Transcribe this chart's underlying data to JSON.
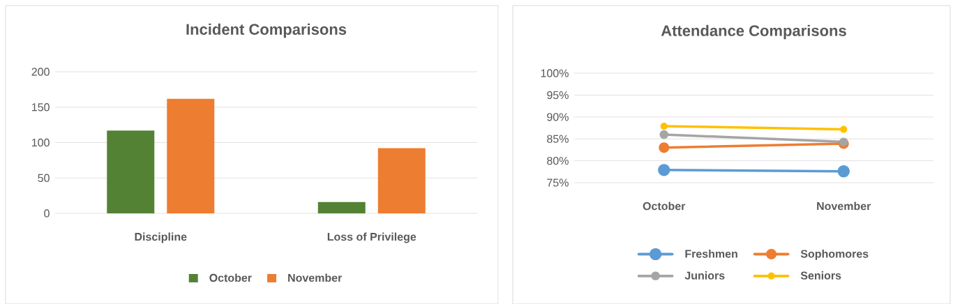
{
  "chart_data": [
    {
      "type": "bar",
      "title": "Incident Comparisons",
      "categories": [
        "Discipline",
        "Loss of Privilege"
      ],
      "series": [
        {
          "name": "October",
          "color": "#548235",
          "values": [
            117,
            16
          ]
        },
        {
          "name": "November",
          "color": "#ED7D31",
          "values": [
            162,
            92
          ]
        }
      ],
      "ylim": [
        0,
        200
      ],
      "yticks": [
        0,
        50,
        100,
        150,
        200
      ],
      "grid": "y",
      "legend": "bottom"
    },
    {
      "type": "line",
      "title": "Attendance Comparisons",
      "categories": [
        "October",
        "November"
      ],
      "series": [
        {
          "name": "Freshmen",
          "color": "#5B9BD5",
          "values": [
            77.9,
            77.6
          ]
        },
        {
          "name": "Sophomores",
          "color": "#ED7D31",
          "values": [
            83.0,
            83.9
          ]
        },
        {
          "name": "Juniors",
          "color": "#A5A5A5",
          "values": [
            86.0,
            84.3
          ]
        },
        {
          "name": "Seniors",
          "color": "#FFC000",
          "values": [
            87.9,
            87.2
          ]
        }
      ],
      "ylim": [
        75,
        100
      ],
      "yticks": [
        {
          "value": 75,
          "label": "75%"
        },
        {
          "value": 80,
          "label": "80%"
        },
        {
          "value": 85,
          "label": "85%"
        },
        {
          "value": 90,
          "label": "90%"
        },
        {
          "value": 95,
          "label": "95%"
        },
        {
          "value": 100,
          "label": "100%"
        }
      ],
      "grid": "y",
      "legend": "bottom",
      "marker": "circle"
    }
  ]
}
